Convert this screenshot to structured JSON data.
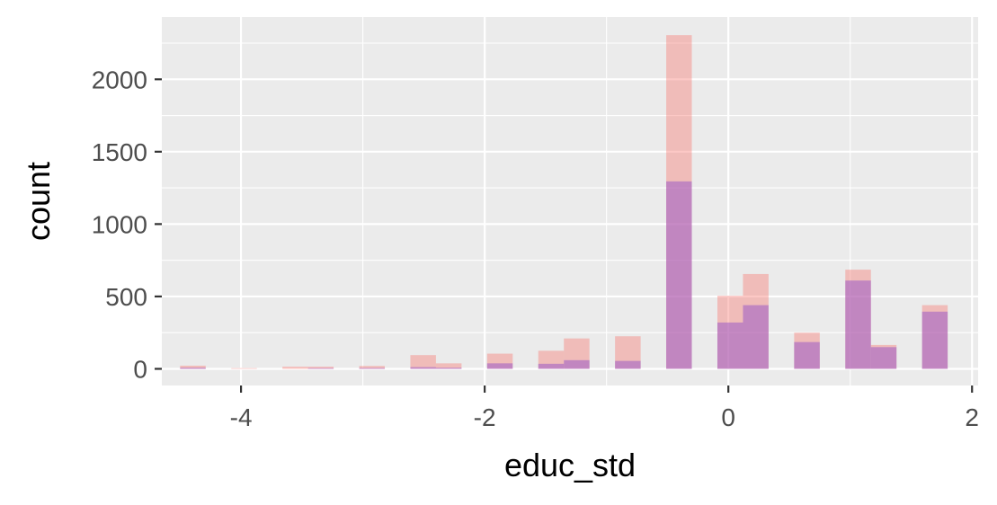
{
  "chart_data": {
    "type": "bar",
    "xlabel": "educ_std",
    "ylabel": "count",
    "xlim": [
      -4.65,
      2.05
    ],
    "ylim": [
      -115,
      2430
    ],
    "x_ticks": [
      -4,
      -2,
      0,
      2
    ],
    "y_ticks": [
      0,
      500,
      1000,
      1500,
      2000
    ],
    "grid": true,
    "bin_width": 0.21,
    "series": [
      {
        "color": "#F8766D",
        "opacity": 0.4,
        "bins": [
          {
            "x0": -4.5,
            "value": 22
          },
          {
            "x0": -4.08,
            "value": 5
          },
          {
            "x0": -3.66,
            "value": 15
          },
          {
            "x0": -3.45,
            "value": 15
          },
          {
            "x0": -3.03,
            "value": 20
          },
          {
            "x0": -2.61,
            "value": 95
          },
          {
            "x0": -2.4,
            "value": 38
          },
          {
            "x0": -1.98,
            "value": 105
          },
          {
            "x0": -1.56,
            "value": 125
          },
          {
            "x0": -1.35,
            "value": 210
          },
          {
            "x0": -0.93,
            "value": 225
          },
          {
            "x0": -0.51,
            "value": 2305
          },
          {
            "x0": -0.09,
            "value": 505
          },
          {
            "x0": 0.12,
            "value": 655
          },
          {
            "x0": 0.54,
            "value": 250
          },
          {
            "x0": 0.96,
            "value": 685
          },
          {
            "x0": 1.17,
            "value": 165
          },
          {
            "x0": 1.59,
            "value": 440
          }
        ]
      },
      {
        "color": "#9B59C6",
        "opacity": 0.55,
        "bins": [
          {
            "x0": -4.5,
            "value": 8
          },
          {
            "x0": -3.45,
            "value": 5
          },
          {
            "x0": -3.03,
            "value": 6
          },
          {
            "x0": -2.61,
            "value": 12
          },
          {
            "x0": -2.4,
            "value": 8
          },
          {
            "x0": -1.98,
            "value": 38
          },
          {
            "x0": -1.56,
            "value": 35
          },
          {
            "x0": -1.35,
            "value": 60
          },
          {
            "x0": -0.93,
            "value": 55
          },
          {
            "x0": -0.51,
            "value": 1295
          },
          {
            "x0": -0.09,
            "value": 320
          },
          {
            "x0": 0.12,
            "value": 440
          },
          {
            "x0": 0.54,
            "value": 185
          },
          {
            "x0": 0.96,
            "value": 610
          },
          {
            "x0": 1.17,
            "value": 150
          },
          {
            "x0": 1.59,
            "value": 395
          }
        ]
      }
    ]
  }
}
